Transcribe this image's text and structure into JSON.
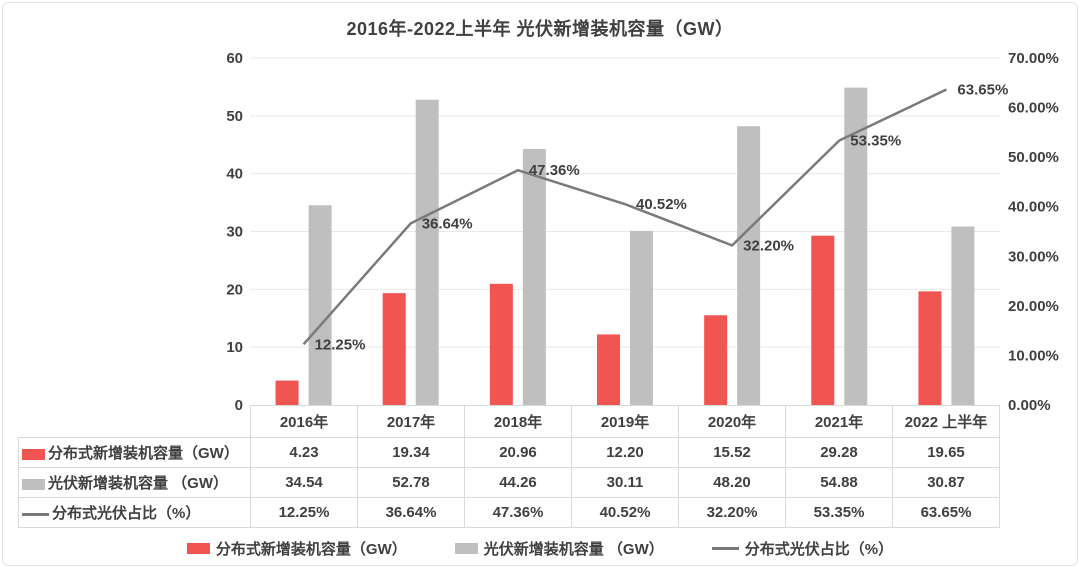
{
  "chart_data": {
    "type": "combo",
    "title": "2016年-2022上半年 光伏新增装机容量（GW）",
    "categories": [
      "2016年",
      "2017年",
      "2018年",
      "2019年",
      "2020年",
      "2021年",
      "2022 上半年"
    ],
    "series": [
      {
        "name": "分布式新增装机容量（GW）",
        "type": "bar",
        "color": "#F15551",
        "values": [
          4.23,
          19.34,
          20.96,
          12.2,
          15.52,
          29.28,
          19.65
        ]
      },
      {
        "name": "光伏新增装机容量 （GW）",
        "type": "bar",
        "color": "#BFBFBF",
        "values": [
          34.54,
          52.78,
          44.26,
          30.11,
          48.2,
          54.88,
          30.87
        ]
      },
      {
        "name": "分布式光伏占比（%）",
        "type": "line",
        "color": "#7A7A7A",
        "values": [
          12.25,
          36.64,
          47.36,
          40.52,
          32.2,
          53.35,
          63.65
        ],
        "labels": [
          "12.25%",
          "36.64%",
          "47.36%",
          "40.52%",
          "32.20%",
          "53.35%",
          "63.65%"
        ]
      }
    ],
    "left_axis": {
      "min": 0,
      "max": 60,
      "step": 10,
      "ticks": [
        "0",
        "10",
        "20",
        "30",
        "40",
        "50",
        "60"
      ]
    },
    "right_axis": {
      "min": 0,
      "max": 70,
      "step": 10,
      "ticks": [
        "0.00%",
        "10.00%",
        "20.00%",
        "30.00%",
        "40.00%",
        "50.00%",
        "60.00%",
        "70.00%"
      ]
    },
    "grid": true,
    "legend_position": "bottom"
  },
  "table": {
    "columns": [
      "2016年",
      "2017年",
      "2018年",
      "2019年",
      "2020年",
      "2021年",
      "2022 上半年"
    ],
    "rows": [
      {
        "label": "分布式新增装机容量（GW）",
        "swatch": "bar",
        "color": "#F15551",
        "values": [
          "4.23",
          "19.34",
          "20.96",
          "12.20",
          "15.52",
          "29.28",
          "19.65"
        ]
      },
      {
        "label": "光伏新增装机容量 （GW）",
        "swatch": "bar",
        "color": "#BFBFBF",
        "values": [
          "34.54",
          "52.78",
          "44.26",
          "30.11",
          "48.20",
          "54.88",
          "30.87"
        ]
      },
      {
        "label": "分布式光伏占比（%）",
        "swatch": "line",
        "color": "#7A7A7A",
        "values": [
          "12.25%",
          "36.64%",
          "47.36%",
          "40.52%",
          "32.20%",
          "53.35%",
          "63.65%"
        ]
      }
    ]
  },
  "legend": {
    "items": [
      {
        "label": "分布式新增装机容量（GW）",
        "swatch": "bar",
        "color": "#F15551"
      },
      {
        "label": "光伏新增装机容量 （GW）",
        "swatch": "bar",
        "color": "#BFBFBF"
      },
      {
        "label": "分布式光伏占比（%）",
        "swatch": "line",
        "color": "#7A7A7A"
      }
    ]
  },
  "colors": {
    "text": "#404040",
    "grid": "#E8E8E8",
    "table_border": "#D9D9D9",
    "frame_border": "#E2E2E2"
  }
}
